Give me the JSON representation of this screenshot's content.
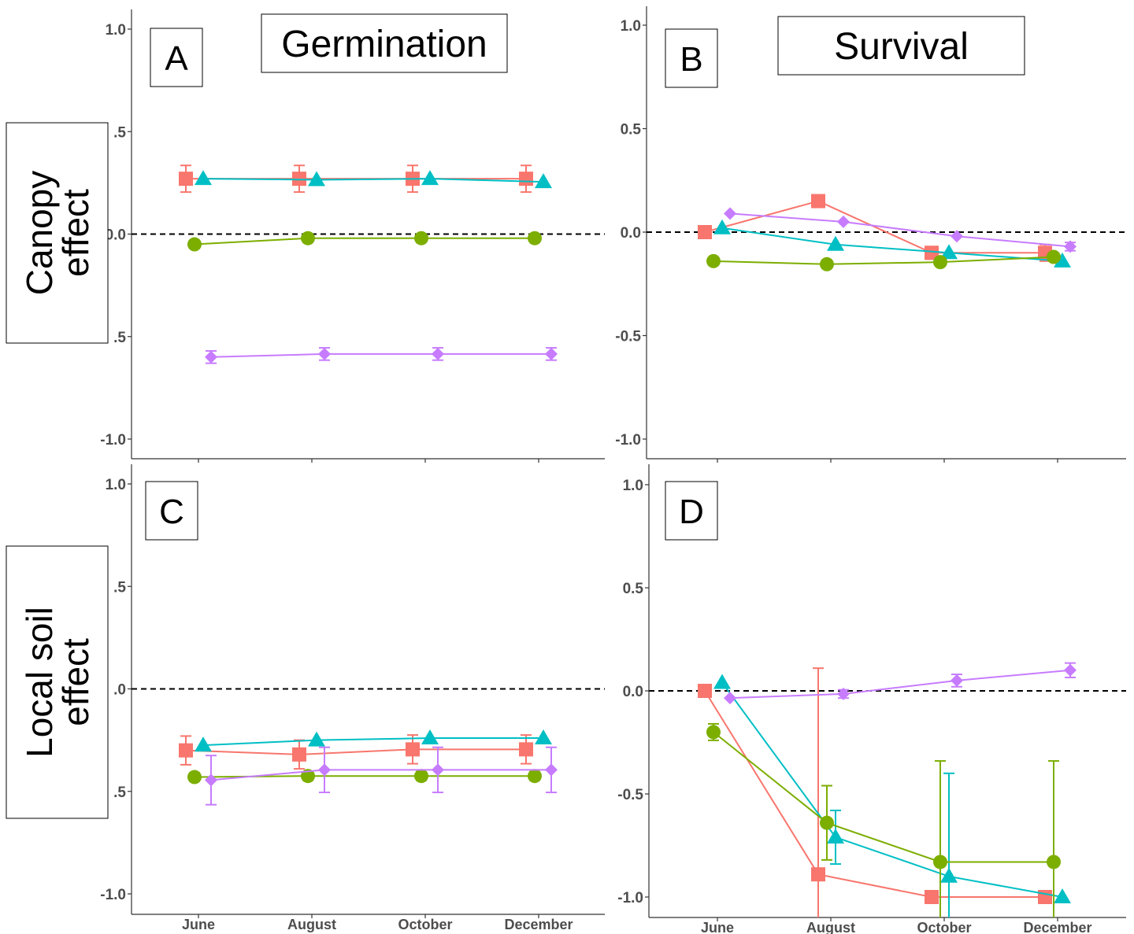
{
  "figure": {
    "row_labels": [
      {
        "line1": "Canopy",
        "line2": "effect"
      },
      {
        "line1": "Local soil",
        "line2": "effect"
      }
    ],
    "column_titles": [
      "Germination",
      "Survival"
    ]
  },
  "chart_data": [
    {
      "type": "line",
      "panel_label": "A",
      "title": "Germination",
      "row": "Canopy effect",
      "categories": [
        "June",
        "August",
        "October",
        "December"
      ],
      "ylim": [
        -1.1,
        1.1
      ],
      "yticks": [
        "1.0",
        ".5",
        "0.0",
        ".5",
        "-1.0"
      ],
      "reference_line_y": 0.0,
      "series": [
        {
          "color": "#F8766D",
          "marker": "square",
          "values": [
            0.27,
            0.27,
            0.27,
            0.27
          ],
          "err": [
            0.065,
            0.065,
            0.065,
            0.065
          ]
        },
        {
          "color": "#00BFC4",
          "marker": "triangle",
          "values": [
            0.27,
            0.265,
            0.27,
            0.255
          ],
          "err": [
            0,
            0,
            0,
            0
          ]
        },
        {
          "color": "#7CAE00",
          "marker": "circle",
          "values": [
            -0.05,
            -0.02,
            -0.02,
            -0.02
          ],
          "err": [
            0,
            0,
            0,
            0
          ]
        },
        {
          "color": "#C77CFF",
          "marker": "diamond",
          "values": [
            -0.6,
            -0.585,
            -0.585,
            -0.585
          ],
          "err": [
            0.03,
            0.03,
            0.03,
            0.03
          ]
        }
      ]
    },
    {
      "type": "line",
      "panel_label": "B",
      "title": "Survival",
      "row": "Canopy effect",
      "categories": [
        "June",
        "August",
        "October",
        "December"
      ],
      "ylim": [
        -1.1,
        1.1
      ],
      "yticks": [
        "1.0",
        "0.5",
        "0.0",
        "-0.5",
        "-1.0"
      ],
      "reference_line_y": 0.0,
      "series": [
        {
          "color": "#F8766D",
          "marker": "square",
          "values": [
            0.0,
            0.15,
            -0.1,
            -0.1
          ],
          "err": [
            0,
            0,
            0.03,
            0.04
          ]
        },
        {
          "color": "#00BFC4",
          "marker": "triangle",
          "values": [
            0.02,
            -0.06,
            -0.1,
            -0.14
          ],
          "err": [
            0,
            0,
            0,
            0
          ]
        },
        {
          "color": "#7CAE00",
          "marker": "circle",
          "values": [
            -0.14,
            -0.155,
            -0.145,
            -0.12
          ],
          "err": [
            0,
            0,
            0,
            0
          ]
        },
        {
          "color": "#C77CFF",
          "marker": "diamond",
          "values": [
            0.09,
            0.05,
            -0.02,
            -0.07
          ],
          "err": [
            0,
            0,
            0,
            0.02
          ]
        }
      ]
    },
    {
      "type": "line",
      "panel_label": "C",
      "row": "Local soil effect",
      "categories": [
        "June",
        "August",
        "October",
        "December"
      ],
      "ylim": [
        -1.1,
        1.1
      ],
      "yticks": [
        "1.0",
        ".5",
        ".0",
        ".5",
        "-1.0"
      ],
      "reference_line_y": 0.0,
      "series": [
        {
          "color": "#F8766D",
          "marker": "square",
          "values": [
            -0.3,
            -0.32,
            -0.295,
            -0.295
          ],
          "err": [
            0.07,
            0.07,
            0.07,
            0.07
          ]
        },
        {
          "color": "#00BFC4",
          "marker": "triangle",
          "values": [
            -0.275,
            -0.25,
            -0.24,
            -0.24
          ],
          "err": [
            0,
            0,
            0,
            0
          ]
        },
        {
          "color": "#7CAE00",
          "marker": "circle",
          "values": [
            -0.43,
            -0.425,
            -0.425,
            -0.425
          ],
          "err": [
            0.02,
            0.02,
            0.02,
            0.02
          ]
        },
        {
          "color": "#C77CFF",
          "marker": "diamond",
          "values": [
            -0.445,
            -0.395,
            -0.395,
            -0.395
          ],
          "err": [
            0.12,
            0.11,
            0.11,
            0.11
          ]
        }
      ]
    },
    {
      "type": "line",
      "panel_label": "D",
      "row": "Local soil effect",
      "categories": [
        "June",
        "August",
        "October",
        "December"
      ],
      "ylim": [
        -1.1,
        1.1
      ],
      "yticks": [
        "1.0",
        "0.5",
        "0.0",
        "-0.5",
        "-1.0"
      ],
      "reference_line_y": 0.0,
      "series": [
        {
          "color": "#F8766D",
          "marker": "square",
          "values": [
            0.0,
            -0.89,
            -1.0,
            -1.0
          ],
          "err": [
            0,
            1.0,
            0,
            0
          ]
        },
        {
          "color": "#00BFC4",
          "marker": "triangle",
          "values": [
            0.04,
            -0.71,
            -0.9,
            -1.0
          ],
          "err": [
            0,
            0.13,
            0.5,
            0
          ]
        },
        {
          "color": "#7CAE00",
          "marker": "circle",
          "values": [
            -0.2,
            -0.64,
            -0.83,
            -0.83
          ],
          "err": [
            0.04,
            0.18,
            0.49,
            0.49
          ]
        },
        {
          "color": "#C77CFF",
          "marker": "diamond",
          "values": [
            -0.035,
            -0.015,
            0.05,
            0.1
          ],
          "err": [
            0,
            0.02,
            0.03,
            0.035
          ]
        }
      ]
    }
  ]
}
